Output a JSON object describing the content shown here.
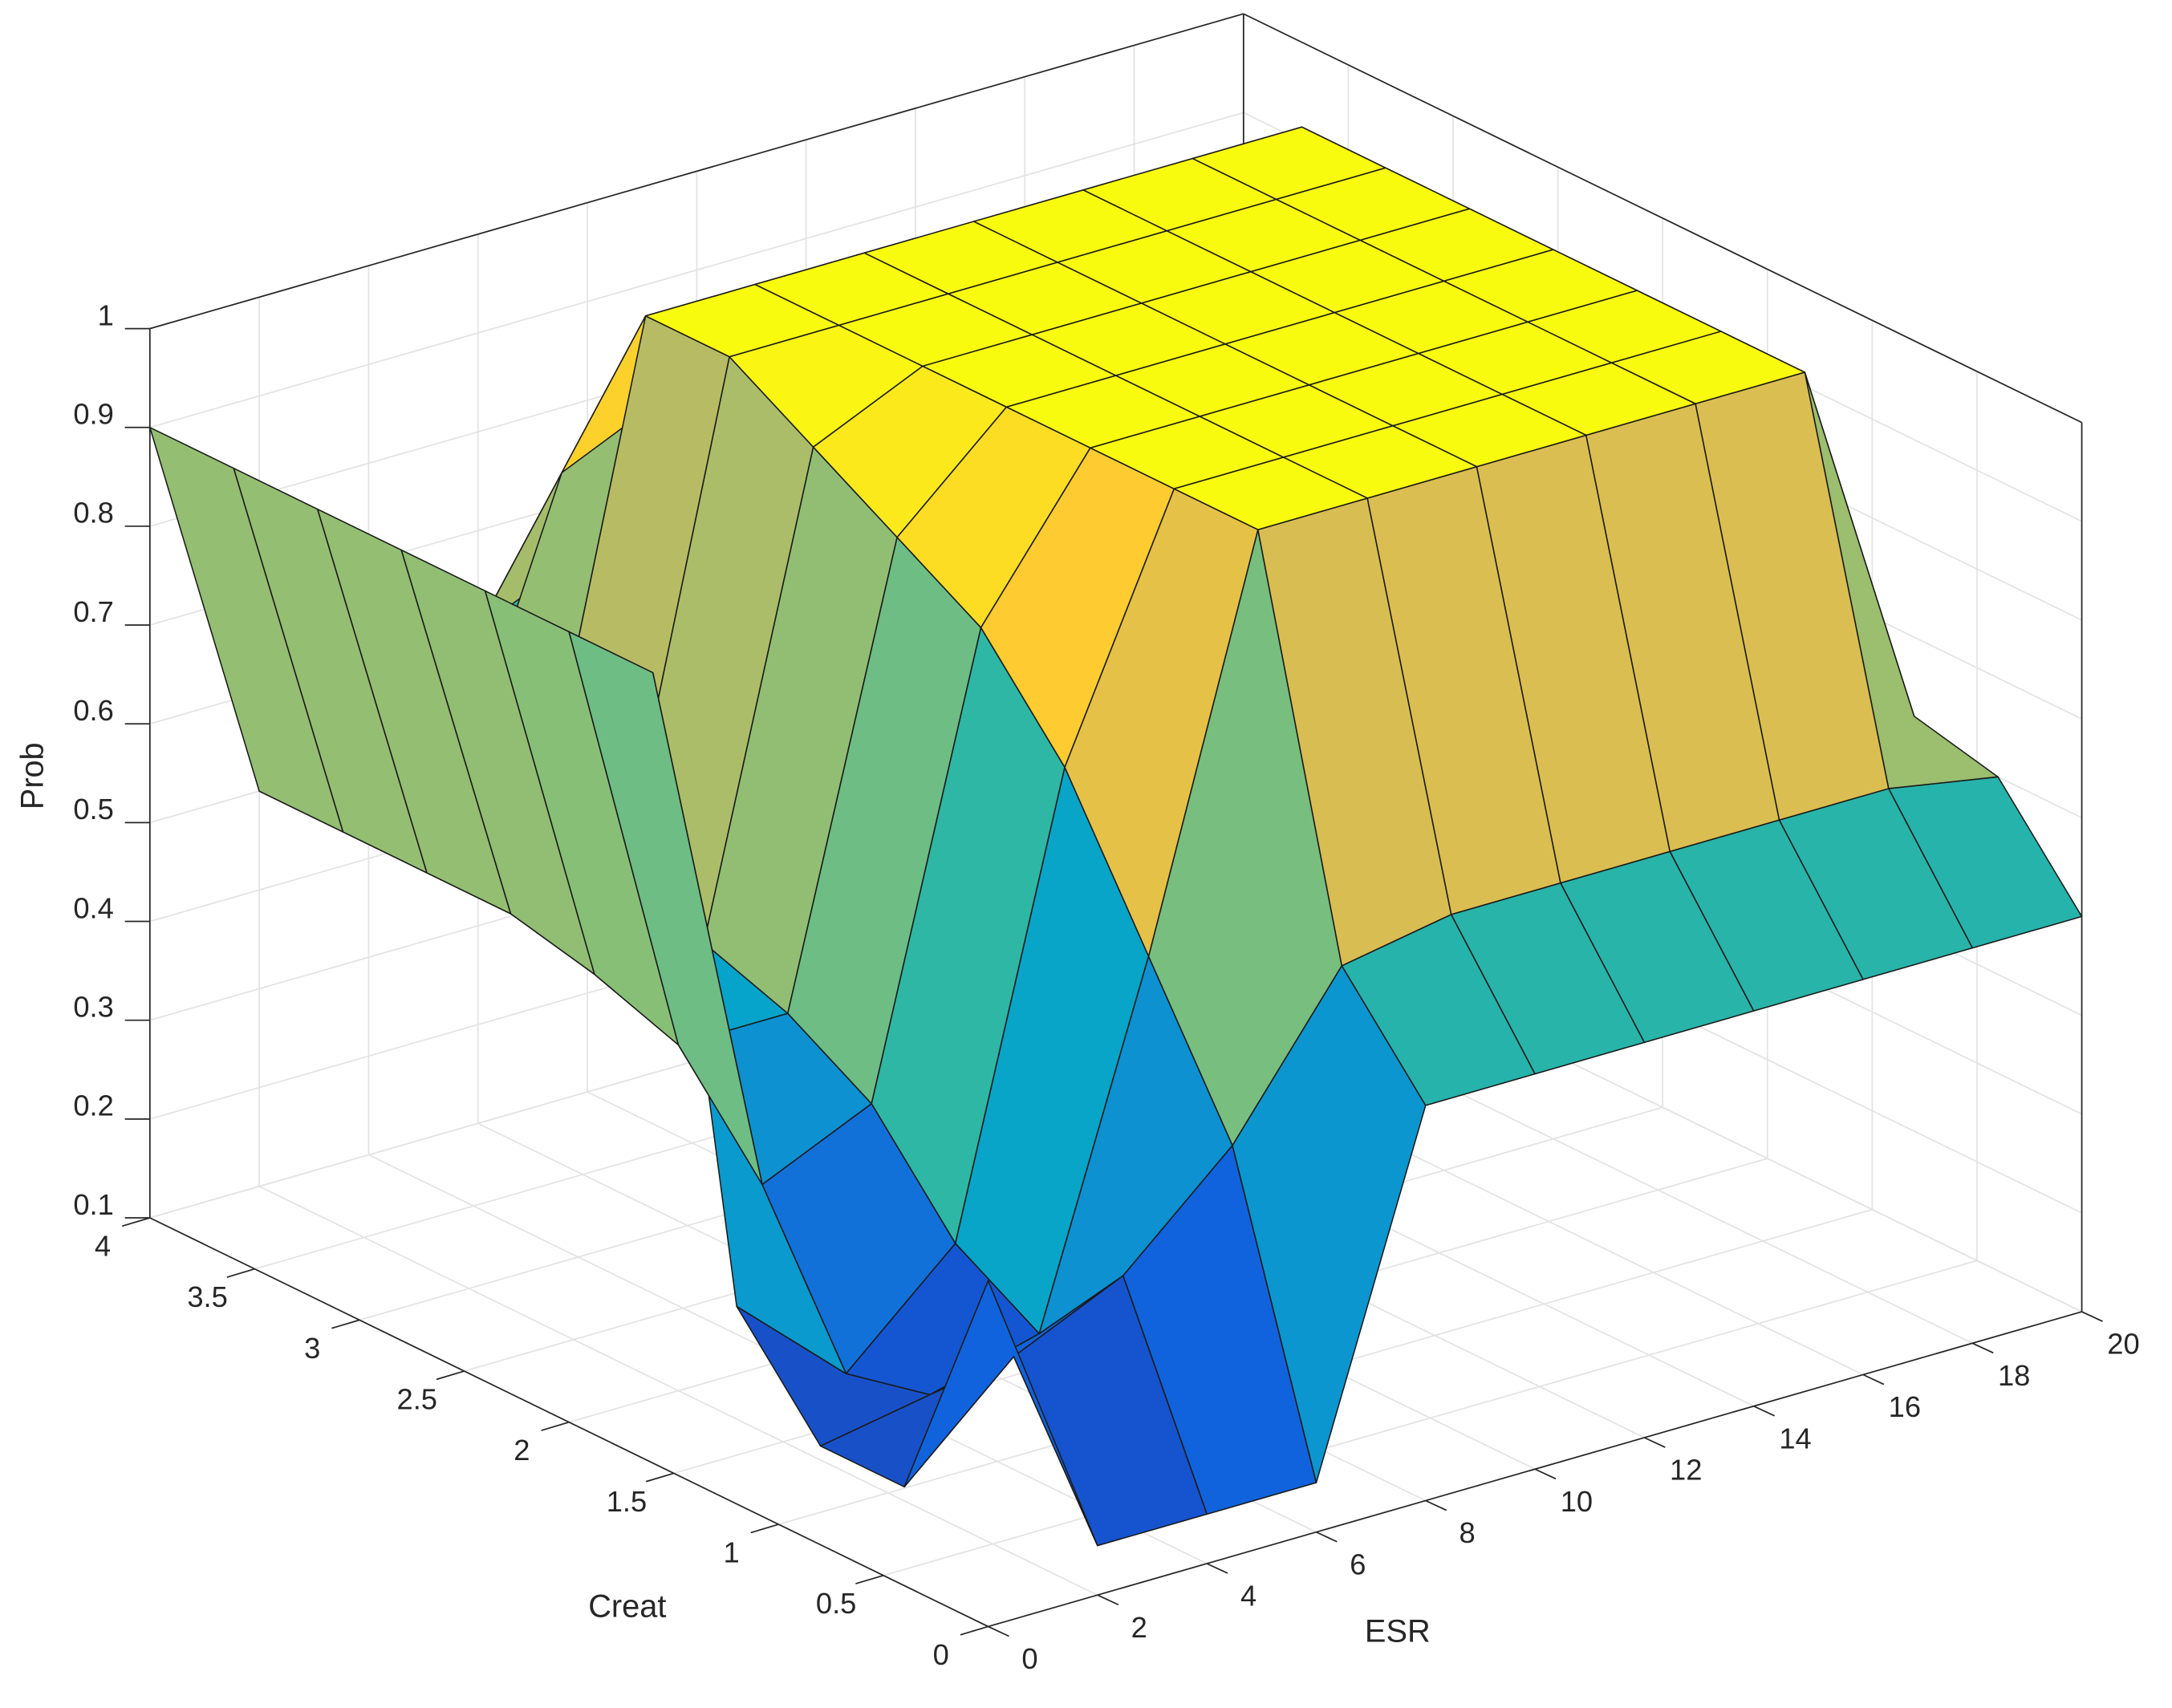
{
  "chart_data": {
    "type": "surface",
    "xlabel": "ESR",
    "ylabel": "Creat",
    "zlabel": "Prob",
    "x": [
      0,
      2,
      4,
      6,
      8,
      10,
      12,
      14,
      16,
      18,
      20
    ],
    "y": [
      0,
      0.4,
      0.8,
      1.2,
      1.6,
      2,
      2.4,
      2.8,
      3.2,
      3.6,
      4
    ],
    "z": [
      [
        0.45,
        0.15,
        0.15,
        0.15,
        0.5,
        0.5,
        0.5,
        0.5,
        0.5,
        0.5,
        0.5
      ],
      [
        0.2,
        0.3,
        0.35,
        0.45,
        0.6,
        0.62,
        0.62,
        0.62,
        0.62,
        0.62,
        0.6
      ],
      [
        0.2,
        0.22,
        0.25,
        0.6,
        1,
        1,
        1,
        1,
        1,
        1,
        0.62
      ],
      [
        0.3,
        0.2,
        0.3,
        0.75,
        1,
        1,
        1,
        1,
        1,
        1,
        0.62
      ],
      [
        0.9,
        0.35,
        0.4,
        0.85,
        1,
        1,
        1,
        1,
        1,
        1,
        0.62
      ],
      [
        0.9,
        0.45,
        0.45,
        0.9,
        1,
        1,
        1,
        1,
        1,
        1,
        0.62
      ],
      [
        0.9,
        0.48,
        0.48,
        0.95,
        1,
        1,
        1,
        1,
        1,
        1,
        0.62
      ],
      [
        0.9,
        0.5,
        0.5,
        1,
        1,
        1,
        1,
        1,
        1,
        1,
        0.62
      ],
      [
        0.9,
        0.5,
        0.5,
        1,
        1,
        1,
        1,
        1,
        1,
        1,
        0.62
      ],
      [
        0.9,
        0.5,
        0.5,
        0.8,
        0.85,
        0.85,
        0.85,
        0.85,
        0.85,
        0.85,
        0.6
      ],
      [
        0.9,
        0.5,
        0.45,
        0.6,
        0.65,
        0.65,
        0.65,
        0.65,
        0.65,
        0.6,
        0.55
      ]
    ],
    "xlim": [
      0,
      20
    ],
    "ylim": [
      0,
      4
    ],
    "zlim": [
      0.1,
      1
    ],
    "xticks": [
      0,
      2,
      4,
      6,
      8,
      10,
      12,
      14,
      16,
      18,
      20
    ],
    "yticks": [
      0,
      0.5,
      1,
      1.5,
      2,
      2.5,
      3,
      3.5,
      4
    ],
    "zticks": [
      0.1,
      0.2,
      0.3,
      0.4,
      0.5,
      0.6,
      0.7,
      0.8,
      0.9,
      1
    ],
    "grid": true,
    "colormap": [
      "#352a87",
      "#0f5cdd",
      "#1481d6",
      "#06a4ca",
      "#2eb7a4",
      "#87bf77",
      "#d1bb59",
      "#fec832",
      "#f9fb0e"
    ]
  }
}
